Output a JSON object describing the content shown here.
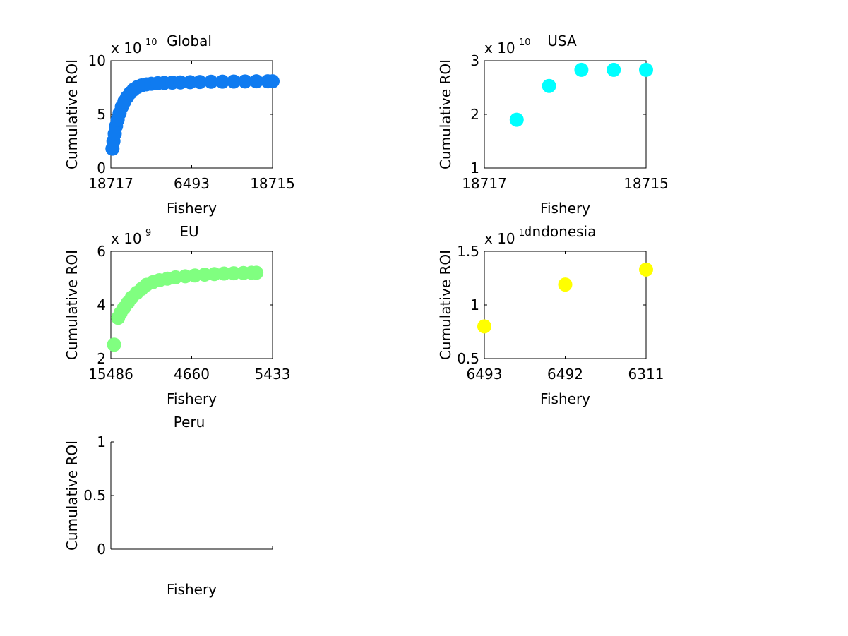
{
  "chart_data": [
    {
      "type": "scatter",
      "title": "Global",
      "xlabel": "Fishery",
      "ylabel": "Cumulative ROI",
      "exponent_label": "x 10",
      "exponent": "10",
      "xtick_labels": [
        "18717",
        "6493",
        "18715"
      ],
      "yticks": [
        "0",
        "5",
        "10"
      ],
      "xlim": [
        0,
        100
      ],
      "ylim": [
        0,
        10
      ],
      "marker_color": "#0f7bf0",
      "series": [
        {
          "x": [
            1,
            1.6,
            2.4,
            3.2,
            4.2,
            5.4,
            6.8,
            8.4,
            10,
            12,
            14,
            16.5,
            19,
            22,
            25,
            29,
            33,
            38,
            43,
            49,
            55,
            62,
            69,
            76,
            83,
            90,
            97,
            100
          ],
          "y": [
            1.8,
            2.5,
            3.2,
            3.9,
            4.5,
            5.1,
            5.7,
            6.2,
            6.6,
            7.0,
            7.3,
            7.55,
            7.7,
            7.8,
            7.85,
            7.9,
            7.93,
            7.96,
            7.98,
            8.0,
            8.02,
            8.04,
            8.05,
            8.06,
            8.07,
            8.08,
            8.08,
            8.08
          ]
        }
      ]
    },
    {
      "type": "scatter",
      "title": "USA",
      "xlabel": "Fishery",
      "ylabel": "Cumulative ROI",
      "exponent_label": "x 10",
      "exponent": "10",
      "xtick_labels": [
        "18717",
        "18715"
      ],
      "yticks": [
        "1",
        "2",
        "3"
      ],
      "xlim": [
        0,
        5
      ],
      "ylim": [
        1,
        3
      ],
      "marker_color": "#00ffff",
      "series": [
        {
          "x": [
            1,
            2,
            3,
            4,
            5
          ],
          "y": [
            1.9,
            2.53,
            2.83,
            2.83,
            2.83
          ]
        }
      ]
    },
    {
      "type": "scatter",
      "title": "EU",
      "xlabel": "Fishery",
      "ylabel": "Cumulative ROI",
      "exponent_label": "x 10",
      "exponent": "9",
      "xtick_labels": [
        "15486",
        "4660",
        "5433"
      ],
      "yticks": [
        "2",
        "4",
        "6"
      ],
      "xlim": [
        0,
        100
      ],
      "ylim": [
        2,
        6
      ],
      "marker_color": "#80ff80",
      "series": [
        {
          "x": [
            2,
            4.5,
            6,
            8,
            10.5,
            13,
            16,
            19,
            22,
            26,
            30,
            35,
            40,
            46,
            52,
            58,
            64,
            70,
            76,
            82,
            87,
            90
          ],
          "y": [
            2.52,
            3.52,
            3.7,
            3.88,
            4.08,
            4.28,
            4.45,
            4.6,
            4.75,
            4.85,
            4.92,
            4.98,
            5.03,
            5.07,
            5.1,
            5.13,
            5.15,
            5.17,
            5.18,
            5.19,
            5.2,
            5.2
          ]
        }
      ]
    },
    {
      "type": "scatter",
      "title": "Indonesia",
      "xlabel": "Fishery",
      "ylabel": "Cumulative ROI",
      "exponent_label": "x 10",
      "exponent": "10",
      "xtick_labels": [
        "6493",
        "6492",
        "6311"
      ],
      "yticks": [
        "0.5",
        "1",
        "1.5"
      ],
      "xlim": [
        1,
        3
      ],
      "ylim": [
        0.5,
        1.5
      ],
      "marker_color": "#ffff00",
      "series": [
        {
          "x": [
            1,
            2,
            3
          ],
          "y": [
            0.8,
            1.19,
            1.33
          ]
        }
      ]
    },
    {
      "type": "scatter",
      "title": "Peru",
      "xlabel": "Fishery",
      "ylabel": "Cumulative ROI",
      "exponent_label": "",
      "exponent": "",
      "xtick_labels": [],
      "yticks": [
        "0",
        "0.5",
        "1"
      ],
      "xlim": [
        0,
        1
      ],
      "ylim": [
        0,
        1
      ],
      "marker_color": "#0000ff",
      "series": [
        {
          "x": [],
          "y": []
        }
      ]
    }
  ]
}
